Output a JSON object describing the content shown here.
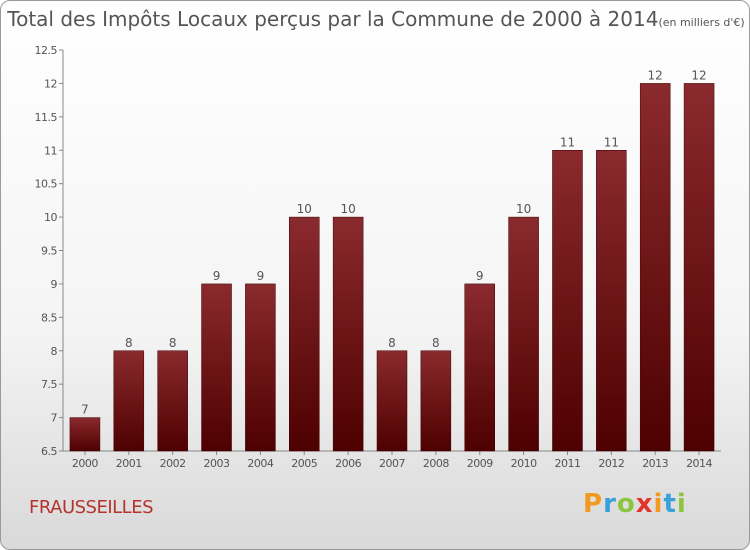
{
  "chart_data": {
    "type": "bar",
    "title": "Total des Impôts Locaux perçus par la Commune de 2000 à 2014",
    "subtitle": "(en milliers d'€)",
    "categories": [
      "2000",
      "2001",
      "2002",
      "2003",
      "2004",
      "2005",
      "2006",
      "2007",
      "2008",
      "2009",
      "2010",
      "2011",
      "2012",
      "2013",
      "2014"
    ],
    "values": [
      7,
      8,
      8,
      9,
      9,
      10,
      10,
      8,
      8,
      9,
      10,
      11,
      11,
      12,
      12
    ],
    "ylim": [
      6.5,
      12.5
    ],
    "yticks": [
      "6.5",
      "7",
      "7.5",
      "8",
      "8.5",
      "9",
      "9.5",
      "10",
      "10.5",
      "11",
      "11.5",
      "12",
      "12.5"
    ],
    "xlabel": "",
    "ylabel": "",
    "grid": false,
    "bar_color": "#6b1519"
  },
  "commune": "FRAUSSEILLES",
  "logo": {
    "text": "Proxiti",
    "letters": [
      {
        "ch": "P",
        "color": "#f29a1f"
      },
      {
        "ch": "r",
        "color": "#3aa0d9"
      },
      {
        "ch": "o",
        "color": "#8cc63f"
      },
      {
        "ch": "x",
        "color": "#e2342b"
      },
      {
        "ch": "i",
        "color": "#f29a1f"
      },
      {
        "ch": "t",
        "color": "#3aa0d9"
      },
      {
        "ch": "i",
        "color": "#8cc63f"
      }
    ]
  }
}
